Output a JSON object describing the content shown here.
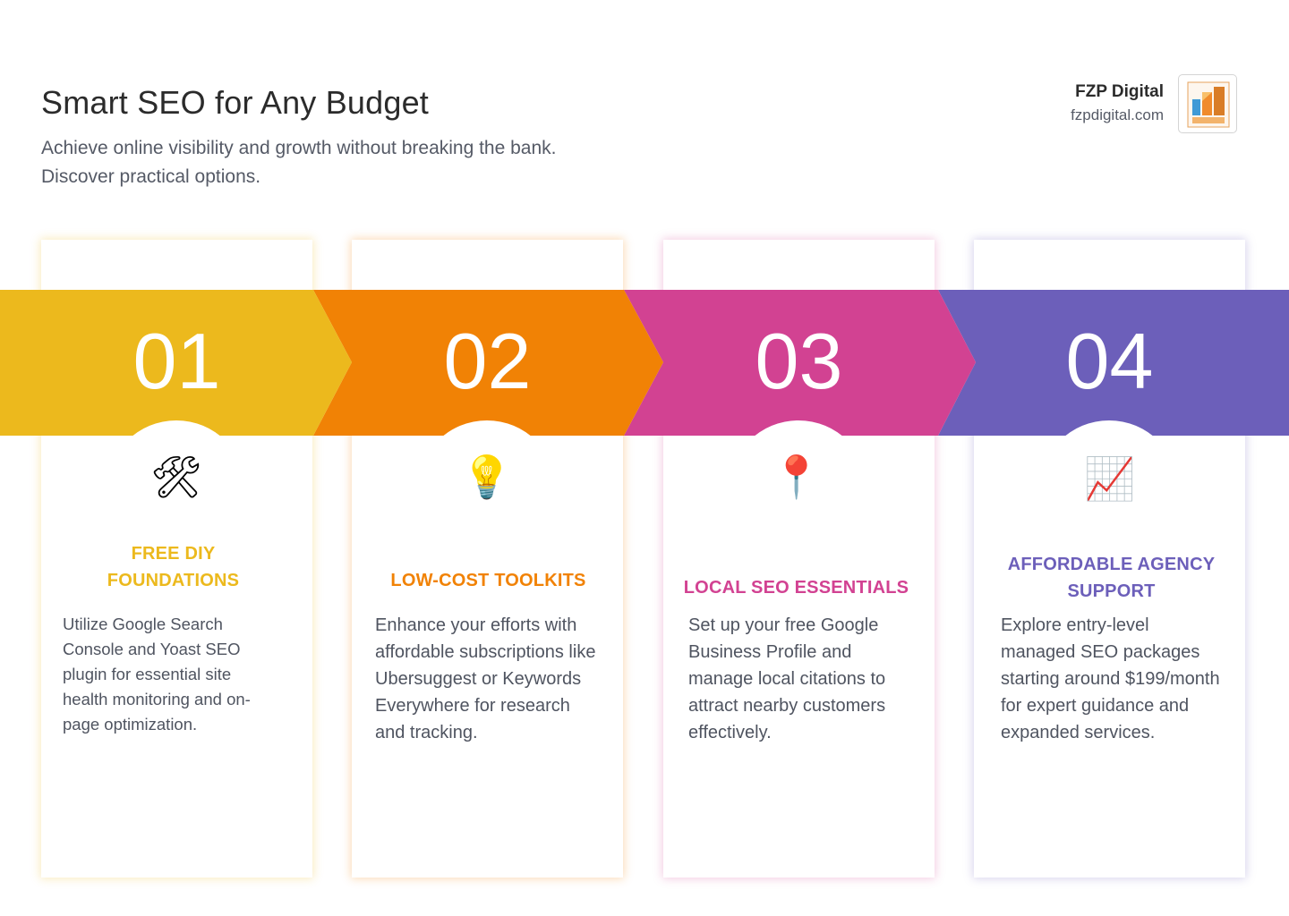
{
  "header": {
    "title": "Smart SEO for Any Budget",
    "subtitle": "Achieve online visibility and growth without breaking the bank.\nDiscover practical options."
  },
  "brand": {
    "name": "FZP Digital",
    "url": "fzpdigital.com"
  },
  "steps": [
    {
      "number": "01",
      "color": "#ECB91D",
      "icon": "hammer-and-wrench-icon",
      "icon_glyph": "🛠",
      "heading": "FREE DIY\nFOUNDATIONS",
      "description": "Utilize Google Search Console and Yoast SEO plugin for essential site health monitoring and on-page optimization."
    },
    {
      "number": "02",
      "color": "#F18205",
      "icon": "light-bulb-icon",
      "icon_glyph": "💡",
      "heading": "LOW-COST TOOLKITS",
      "description": "Enhance your efforts with affordable subscriptions like Ubersuggest or Keywords Everywhere for research and tracking."
    },
    {
      "number": "03",
      "color": "#D24292",
      "icon": "map-pin-icon",
      "icon_glyph": "📍",
      "heading": "LOCAL SEO ESSENTIALS",
      "description": "Set up your free Google Business Profile and manage local citations to attract nearby customers effectively."
    },
    {
      "number": "04",
      "color": "#6C5FBA",
      "icon": "chart-increasing-icon",
      "icon_glyph": "📈",
      "heading": "AFFORDABLE AGENCY\nSUPPORT",
      "description": "Explore entry-level managed SEO packages starting around $199/month for expert guidance and expanded services."
    }
  ]
}
